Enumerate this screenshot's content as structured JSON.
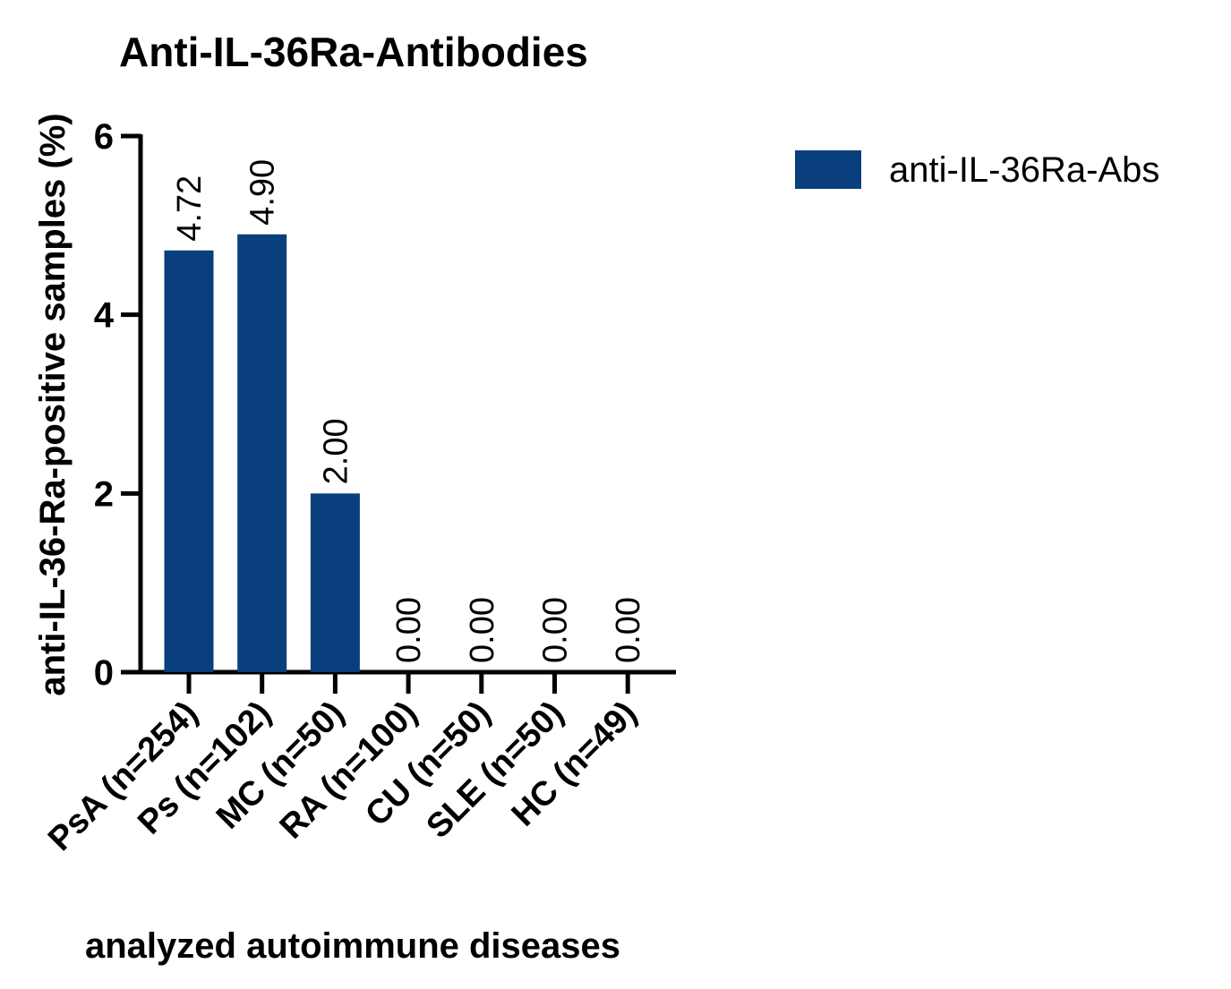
{
  "chart_data": {
    "type": "bar",
    "title": "Anti-IL-36Ra-Antibodies",
    "xlabel": "analyzed autoimmune diseases",
    "ylabel": "anti-IL-36-Ra-positive samples (%)",
    "categories": [
      "PsA (n=254)",
      "Ps (n=102)",
      "MC (n=50)",
      "RA (n=100)",
      "CU (n=50)",
      "SLE (n=50)",
      "HC (n=49)"
    ],
    "series": [
      {
        "name": "anti-IL-36Ra-Abs",
        "color": "#083f7c",
        "values": [
          4.72,
          4.9,
          2,
          0,
          0,
          0,
          0
        ],
        "value_labels": [
          "4.72",
          "4.90",
          "2.00",
          "0.00",
          "0.00",
          "0.00",
          "0.00"
        ]
      }
    ],
    "ylim": [
      0,
      6
    ],
    "yticks": [
      0,
      2,
      4,
      6
    ],
    "legend": "top-right"
  }
}
